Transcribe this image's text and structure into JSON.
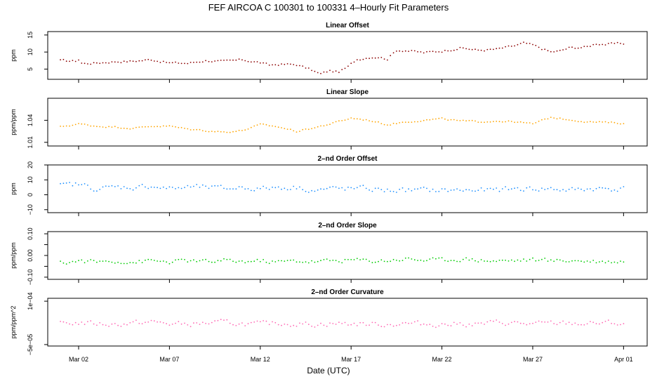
{
  "chart_data": {
    "type": "line",
    "title": "FEF   AIRCOA C   100301 to 100331   4–Hourly Fit Parameters",
    "xlabel": "Date (UTC)",
    "x_ticks": [
      "Mar 02",
      "Mar 07",
      "Mar 12",
      "Mar 17",
      "Mar 22",
      "Mar 27",
      "Apr 01"
    ],
    "x_tick_days": [
      2,
      7,
      12,
      17,
      22,
      27,
      32
    ],
    "xlim": [
      0.3,
      33.3
    ],
    "x_range_days": [
      1,
      32
    ],
    "panels": [
      {
        "title": "Linear Offset",
        "ylabel": "ppm",
        "ylim": [
          2,
          16
        ],
        "yticks": [
          5,
          10,
          15
        ],
        "ytick_labels": [
          "5",
          "10",
          "15"
        ],
        "color": "#8b0000",
        "anchors": [
          [
            1,
            7.5
          ],
          [
            1.8,
            7.3
          ],
          [
            2,
            7.8
          ],
          [
            2.2,
            6.6
          ],
          [
            3,
            6.8
          ],
          [
            4,
            7.2
          ],
          [
            5,
            7.3
          ],
          [
            6,
            7.8
          ],
          [
            7,
            6.8
          ],
          [
            8,
            6.7
          ],
          [
            9,
            7.5
          ],
          [
            10,
            7.2
          ],
          [
            11,
            7.7
          ],
          [
            12,
            6.9
          ],
          [
            12.5,
            6.1
          ],
          [
            13,
            6.4
          ],
          [
            14,
            6.3
          ],
          [
            14.8,
            4.8
          ],
          [
            15.3,
            3.5
          ],
          [
            15.8,
            4.5
          ],
          [
            16.3,
            4.1
          ],
          [
            16.8,
            5.5
          ],
          [
            17.3,
            7.8
          ],
          [
            18,
            8.5
          ],
          [
            18.5,
            8.6
          ],
          [
            19,
            8.0
          ],
          [
            19.5,
            10.5
          ],
          [
            20,
            10.5
          ],
          [
            21,
            9.8
          ],
          [
            22,
            10.3
          ],
          [
            23,
            11.2
          ],
          [
            23.5,
            10.9
          ],
          [
            24,
            10.5
          ],
          [
            25,
            10.8
          ],
          [
            26,
            11.8
          ],
          [
            26.5,
            12.6
          ],
          [
            27,
            12.0
          ],
          [
            28,
            10.0
          ],
          [
            28.5,
            10.3
          ],
          [
            29,
            11.2
          ],
          [
            30,
            11.5
          ],
          [
            30.5,
            12.5
          ],
          [
            31,
            12.3
          ],
          [
            32,
            12.5
          ]
        ],
        "amp": 0.3
      },
      {
        "title": "Linear Slope",
        "ylabel": "ppm/ppm",
        "ylim": [
          1.005,
          1.07
        ],
        "yticks": [
          1.01,
          1.04
        ],
        "ytick_labels": [
          "1.01",
          "1.04"
        ],
        "color": "#ffa500",
        "anchors": [
          [
            1,
            1.031
          ],
          [
            2,
            1.035
          ],
          [
            3,
            1.032
          ],
          [
            4,
            1.031
          ],
          [
            5,
            1.029
          ],
          [
            6,
            1.032
          ],
          [
            7,
            1.032
          ],
          [
            8,
            1.028
          ],
          [
            9,
            1.026
          ],
          [
            10,
            1.024
          ],
          [
            11,
            1.026
          ],
          [
            12,
            1.034
          ],
          [
            13,
            1.031
          ],
          [
            14,
            1.025
          ],
          [
            15,
            1.03
          ],
          [
            16,
            1.036
          ],
          [
            17,
            1.043
          ],
          [
            18,
            1.04
          ],
          [
            19,
            1.034
          ],
          [
            20,
            1.038
          ],
          [
            21,
            1.04
          ],
          [
            22,
            1.042
          ],
          [
            23,
            1.039
          ],
          [
            24,
            1.038
          ],
          [
            25,
            1.039
          ],
          [
            26,
            1.038
          ],
          [
            27,
            1.035
          ],
          [
            28,
            1.044
          ],
          [
            29,
            1.041
          ],
          [
            30,
            1.038
          ],
          [
            31,
            1.037
          ],
          [
            32,
            1.036
          ]
        ],
        "amp": 0.001
      },
      {
        "title": "2–nd Order Offset",
        "ylabel": "ppm",
        "ylim": [
          -12,
          20
        ],
        "yticks": [
          -10,
          0,
          10,
          20
        ],
        "ytick_labels": [
          "−10",
          "0",
          "10",
          "20"
        ],
        "color": "#1e90ff",
        "anchors": [
          [
            1,
            6
          ],
          [
            2,
            7
          ],
          [
            3,
            4
          ],
          [
            4,
            5
          ],
          [
            5,
            5
          ],
          [
            6,
            6
          ],
          [
            7,
            4
          ],
          [
            8,
            5
          ],
          [
            9,
            5
          ],
          [
            10,
            4
          ],
          [
            11,
            5
          ],
          [
            12,
            4
          ],
          [
            13,
            5
          ],
          [
            14,
            5
          ],
          [
            15,
            3
          ],
          [
            16,
            4
          ],
          [
            17,
            4
          ],
          [
            18,
            4
          ],
          [
            19,
            3
          ],
          [
            20,
            3
          ],
          [
            21,
            3
          ],
          [
            22,
            3
          ],
          [
            23,
            3
          ],
          [
            24,
            3
          ],
          [
            25,
            3
          ],
          [
            26,
            4
          ],
          [
            27,
            4
          ],
          [
            28,
            4
          ],
          [
            29,
            3
          ],
          [
            30,
            4
          ],
          [
            31,
            4
          ],
          [
            32,
            4
          ]
        ],
        "amp": 1.6
      },
      {
        "title": "2–nd Order Slope",
        "ylabel": "ppm/ppm",
        "ylim": [
          -0.11,
          0.11
        ],
        "yticks": [
          -0.1,
          -0.05,
          0.0,
          0.05,
          0.1
        ],
        "ytick_labels": [
          "−0.10",
          "",
          "0.00",
          "",
          "0.10"
        ],
        "color": "#00cc00",
        "anchors": [
          [
            1,
            -0.035
          ],
          [
            2,
            -0.025
          ],
          [
            3,
            -0.03
          ],
          [
            4,
            -0.025
          ],
          [
            5,
            -0.03
          ],
          [
            6,
            -0.025
          ],
          [
            7,
            -0.03
          ],
          [
            8,
            -0.025
          ],
          [
            9,
            -0.03
          ],
          [
            10,
            -0.025
          ],
          [
            11,
            -0.028
          ],
          [
            12,
            -0.025
          ],
          [
            13,
            -0.03
          ],
          [
            14,
            -0.025
          ],
          [
            15,
            -0.028
          ],
          [
            16,
            -0.025
          ],
          [
            17,
            -0.02
          ],
          [
            18,
            -0.025
          ],
          [
            19,
            -0.022
          ],
          [
            20,
            -0.015
          ],
          [
            21,
            -0.02
          ],
          [
            22,
            -0.022
          ],
          [
            23,
            -0.015
          ],
          [
            24,
            -0.02
          ],
          [
            25,
            -0.025
          ],
          [
            26,
            -0.022
          ],
          [
            27,
            -0.02
          ],
          [
            28,
            -0.025
          ],
          [
            29,
            -0.022
          ],
          [
            30,
            -0.025
          ],
          [
            31,
            -0.028
          ],
          [
            32,
            -0.025
          ]
        ],
        "amp": 0.009
      },
      {
        "title": "2–nd Order Curvature",
        "ylabel": "ppm/ppm^2",
        "ylim": [
          -5.5e-05,
          0.00011
        ],
        "yticks": [
          -5e-05,
          0.0001
        ],
        "ytick_labels": [
          "−5e−05",
          "1e−04"
        ],
        "color": "#ff69b4",
        "anchors": [
          [
            1,
            2.2e-05
          ],
          [
            2,
            2.6e-05
          ],
          [
            3,
            2.2e-05
          ],
          [
            4,
            2e-05
          ],
          [
            5,
            2.4e-05
          ],
          [
            6,
            2.8e-05
          ],
          [
            7,
            2.2e-05
          ],
          [
            8,
            2e-05
          ],
          [
            9,
            2.4e-05
          ],
          [
            10,
            2.6e-05
          ],
          [
            11,
            2.2e-05
          ],
          [
            12,
            2e-05
          ],
          [
            13,
            2.4e-05
          ],
          [
            14,
            2.2e-05
          ],
          [
            15,
            2e-05
          ],
          [
            16,
            2.3e-05
          ],
          [
            17,
            2.2e-05
          ],
          [
            18,
            2.1e-05
          ],
          [
            19,
            2e-05
          ],
          [
            20,
            2.3e-05
          ],
          [
            21,
            2.1e-05
          ],
          [
            22,
            2e-05
          ],
          [
            23,
            2.2e-05
          ],
          [
            24,
            2e-05
          ],
          [
            25,
            2.6e-05
          ],
          [
            26,
            2.4e-05
          ],
          [
            27,
            2e-05
          ],
          [
            28,
            2.3e-05
          ],
          [
            29,
            2.4e-05
          ],
          [
            30,
            2.2e-05
          ],
          [
            31,
            2.5e-05
          ],
          [
            32,
            2.2e-05
          ]
        ],
        "amp": 8e-06
      }
    ]
  }
}
